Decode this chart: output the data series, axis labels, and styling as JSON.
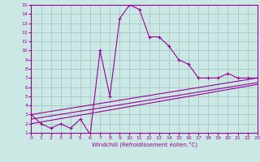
{
  "xlabel": "Windchill (Refroidissement éolien,°C)",
  "background_color": "#cce8e4",
  "grid_color": "#aaccc8",
  "line_color": "#990099",
  "xlim": [
    0,
    23
  ],
  "ylim": [
    1,
    15
  ],
  "xticks": [
    0,
    1,
    2,
    3,
    4,
    5,
    6,
    7,
    8,
    9,
    10,
    11,
    12,
    13,
    14,
    15,
    16,
    17,
    18,
    19,
    20,
    21,
    22,
    23
  ],
  "yticks": [
    1,
    2,
    3,
    4,
    5,
    6,
    7,
    8,
    9,
    10,
    11,
    12,
    13,
    14,
    15
  ],
  "line1_x": [
    0,
    1,
    2,
    3,
    4,
    5,
    6,
    7,
    8,
    9,
    10,
    11,
    12,
    13,
    14,
    15,
    16,
    17,
    18,
    19,
    20,
    21,
    22,
    23
  ],
  "line1_y": [
    3.0,
    2.0,
    1.5,
    2.0,
    1.5,
    2.5,
    0.8,
    10.0,
    5.0,
    13.5,
    15.0,
    14.5,
    11.5,
    11.5,
    10.5,
    9.0,
    8.5,
    7.0,
    7.0,
    7.0,
    7.5,
    7.0,
    7.0,
    7.0
  ],
  "line2_x": [
    0,
    23
  ],
  "line2_y": [
    3.0,
    7.0
  ],
  "line3_x": [
    0,
    23
  ],
  "line3_y": [
    2.5,
    6.5
  ],
  "line4_x": [
    0,
    23
  ],
  "line4_y": [
    2.0,
    6.3
  ]
}
